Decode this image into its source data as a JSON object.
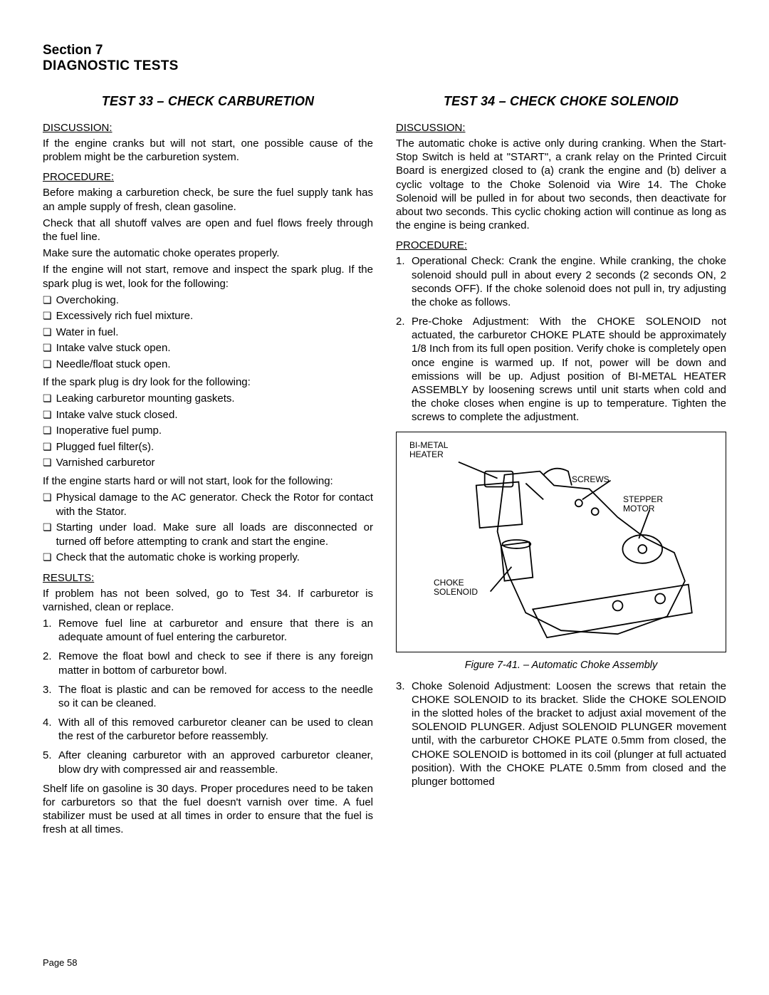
{
  "header": {
    "section": "Section 7",
    "title": "DIAGNOSTIC TESTS"
  },
  "left": {
    "test_title": "TEST 33 – CHECK CARBURETION",
    "discussion_label": "DISCUSSION:",
    "discussion": "If the engine cranks but will not start, one possible cause of the problem might be the carburetion system.",
    "procedure_label": "PROCEDURE:",
    "proc1": "Before making a carburetion check, be sure the fuel supply tank has an ample supply of fresh, clean gasoline.",
    "proc2": "Check that all shutoff valves are open and fuel flows freely through the fuel line.",
    "proc3": "Make sure the automatic choke operates properly.",
    "proc4": "If the engine will not start, remove and inspect the spark plug. If the spark plug is wet, look for the following:",
    "wet_checks": [
      "Overchoking.",
      "Excessively rich fuel mixture.",
      "Water in fuel.",
      "Intake valve stuck open.",
      "Needle/float stuck open."
    ],
    "dry_intro": "If the spark plug is dry look for the following:",
    "dry_checks": [
      "Leaking carburetor mounting gaskets.",
      "Intake valve stuck closed.",
      "Inoperative fuel pump.",
      "Plugged fuel filter(s).",
      "Varnished carburetor"
    ],
    "hard_intro": "If the engine starts hard or will not start, look for the following:",
    "hard_checks": [
      "Physical damage to the AC generator. Check the Rotor for contact with the Stator.",
      "Starting under load. Make sure all loads are disconnected or turned off before attempting to crank and start the engine.",
      "Check that the automatic choke is working properly."
    ],
    "results_label": "RESULTS:",
    "results_intro": "If problem has not been solved, go to Test 34. If carburetor is varnished, clean or replace.",
    "results_steps": [
      "Remove fuel line at carburetor and ensure that there is an adequate amount of fuel entering the carburetor.",
      "Remove the float bowl and check to see if there is any foreign matter in bottom of carburetor bowl.",
      "The float is plastic and can be removed for access to the needle so it can be cleaned.",
      "With all of this removed carburetor cleaner can be used to clean the rest of the carburetor before reassembly.",
      "After cleaning carburetor with an approved carburetor cleaner, blow dry with compressed air and reassemble."
    ],
    "shelf": "Shelf life on gasoline is 30 days. Proper procedures need to be taken for carburetors so that the fuel doesn't varnish over time. A fuel stabilizer must be used at all times in order to ensure that the fuel is fresh at all times."
  },
  "right": {
    "test_title": "TEST 34 – CHECK CHOKE SOLENOID",
    "discussion_label": "DISCUSSION:",
    "discussion": "The automatic choke is active only during cranking. When the Start-Stop Switch is held at \"START\", a crank relay on the Printed Circuit Board is energized closed to (a) crank the engine and (b) deliver a cyclic voltage to the Choke Solenoid via Wire 14. The Choke Solenoid will be pulled in for about two seconds, then deactivate for about two seconds. This cyclic choking action will continue as long as the engine is being cranked.",
    "procedure_label": "PROCEDURE:",
    "proc_steps": [
      "Operational Check: Crank the engine. While cranking, the choke solenoid should pull in about every 2 seconds (2 seconds ON, 2 seconds OFF). If the choke solenoid does not pull in, try adjusting the choke as follows.",
      "Pre-Choke Adjustment: With the CHOKE SOLENOID not actuated, the carburetor CHOKE PLATE should be approximately 1/8 Inch from its full open position. Verify choke is completely open once engine is warmed up. If not, power will be down and emissions will be up. Adjust position of BI-METAL HEATER ASSEMBLY by loosening screws until unit starts when cold and the choke closes when engine is up to temperature. Tighten the screws to complete the adjustment."
    ],
    "figure": {
      "labels": {
        "bimetal": "BI-METAL\nHEATER",
        "screws": "SCREWS",
        "stepper": "STEPPER\nMOTOR",
        "choke": "CHOKE\nSOLENOID"
      },
      "caption": "Figure 7-41. – Automatic Choke Assembly"
    },
    "step3": "Choke Solenoid Adjustment: Loosen the screws that retain the CHOKE SOLENOID to its bracket. Slide the CHOKE SOLENOID in the slotted holes of the bracket to adjust axial movement of the SOLENOID PLUNGER. Adjust SOLENOID PLUNGER movement until, with the carburetor CHOKE PLATE 0.5mm from closed, the CHOKE SOLENOID is bottomed in its coil (plunger at full actuated position). With the CHOKE PLATE 0.5mm from closed and the plunger bottomed"
  },
  "page": "Page 58"
}
